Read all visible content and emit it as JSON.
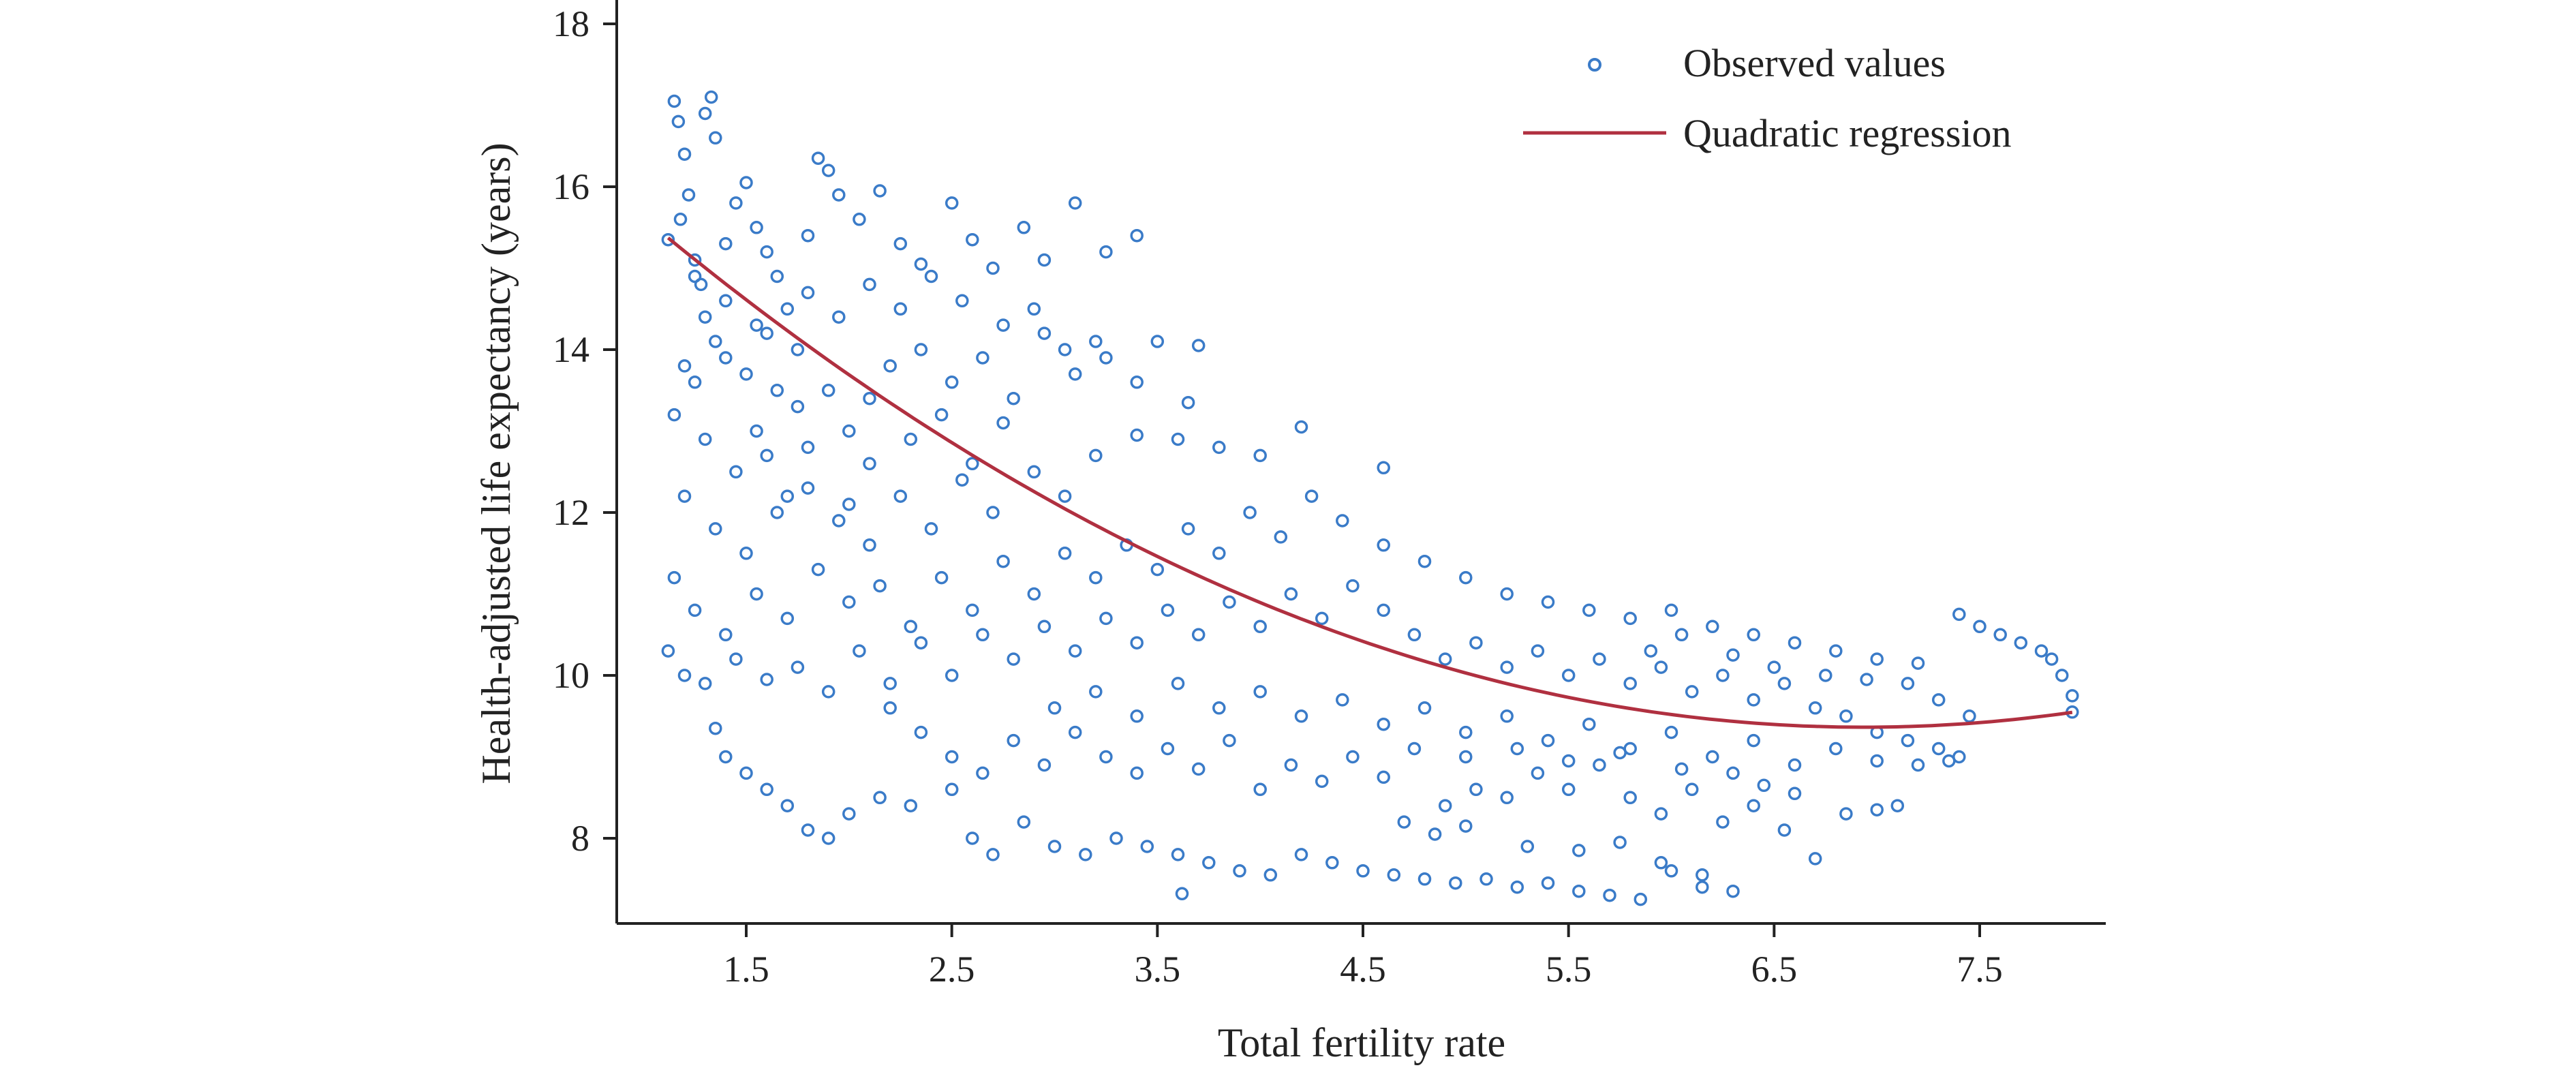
{
  "chart_data": {
    "type": "scatter",
    "xlabel": "Total fertility rate",
    "ylabel": "Health-adjusted life expectancy (years)",
    "xlim": [
      1.0,
      8.0
    ],
    "ylim": [
      7.0,
      18.0
    ],
    "xticks": [
      "1.5",
      "2.5",
      "3.5",
      "4.5",
      "5.5",
      "6.5",
      "7.5"
    ],
    "yticks": [
      "8",
      "10",
      "12",
      "14",
      "16",
      "18"
    ],
    "grid": false,
    "legend_position": "top-right",
    "series": [
      {
        "name": "Observed values",
        "kind": "scatter",
        "marker": "open-circle",
        "color": "#3a7bc8",
        "points": [
          [
            1.12,
            15.35
          ],
          [
            1.15,
            17.05
          ],
          [
            1.17,
            16.8
          ],
          [
            1.2,
            16.4
          ],
          [
            1.22,
            15.9
          ],
          [
            1.18,
            15.6
          ],
          [
            1.25,
            15.1
          ],
          [
            1.3,
            16.9
          ],
          [
            1.33,
            17.1
          ],
          [
            1.35,
            16.6
          ],
          [
            1.28,
            14.8
          ],
          [
            1.4,
            15.3
          ],
          [
            1.45,
            15.8
          ],
          [
            1.5,
            16.05
          ],
          [
            1.55,
            15.5
          ],
          [
            1.6,
            15.2
          ],
          [
            1.3,
            14.4
          ],
          [
            1.35,
            14.1
          ],
          [
            1.2,
            13.8
          ],
          [
            1.25,
            13.6
          ],
          [
            1.4,
            13.9
          ],
          [
            1.5,
            13.7
          ],
          [
            1.6,
            14.2
          ],
          [
            1.7,
            14.5
          ],
          [
            1.75,
            14.0
          ],
          [
            1.8,
            15.4
          ],
          [
            1.85,
            16.35
          ],
          [
            1.9,
            16.2
          ],
          [
            1.95,
            15.9
          ],
          [
            2.05,
            15.6
          ],
          [
            2.15,
            15.95
          ],
          [
            2.25,
            15.3
          ],
          [
            2.35,
            15.05
          ],
          [
            2.5,
            15.8
          ],
          [
            2.6,
            15.35
          ],
          [
            2.7,
            15.0
          ],
          [
            2.85,
            15.5
          ],
          [
            2.95,
            15.1
          ],
          [
            3.1,
            15.8
          ],
          [
            3.25,
            15.2
          ],
          [
            3.4,
            15.4
          ],
          [
            1.15,
            13.2
          ],
          [
            1.3,
            12.9
          ],
          [
            1.45,
            12.5
          ],
          [
            1.6,
            12.7
          ],
          [
            1.75,
            13.3
          ],
          [
            1.9,
            13.5
          ],
          [
            2.0,
            13.0
          ],
          [
            2.1,
            12.6
          ],
          [
            2.2,
            13.8
          ],
          [
            2.35,
            14.0
          ],
          [
            2.5,
            13.6
          ],
          [
            2.65,
            13.9
          ],
          [
            2.8,
            13.4
          ],
          [
            2.95,
            14.2
          ],
          [
            3.1,
            13.7
          ],
          [
            3.25,
            13.9
          ],
          [
            3.5,
            14.1
          ],
          [
            3.7,
            14.05
          ],
          [
            1.2,
            12.2
          ],
          [
            1.35,
            11.8
          ],
          [
            1.5,
            11.5
          ],
          [
            1.65,
            12.0
          ],
          [
            1.8,
            12.3
          ],
          [
            1.95,
            11.9
          ],
          [
            2.1,
            11.6
          ],
          [
            2.25,
            12.2
          ],
          [
            2.4,
            11.8
          ],
          [
            2.55,
            12.4
          ],
          [
            2.7,
            12.0
          ],
          [
            2.9,
            12.5
          ],
          [
            3.05,
            12.2
          ],
          [
            3.2,
            12.7
          ],
          [
            3.4,
            12.95
          ],
          [
            3.6,
            12.9
          ],
          [
            3.8,
            12.8
          ],
          [
            4.0,
            12.7
          ],
          [
            4.2,
            13.05
          ],
          [
            4.6,
            12.55
          ],
          [
            1.15,
            11.2
          ],
          [
            1.25,
            10.8
          ],
          [
            1.4,
            10.5
          ],
          [
            1.55,
            11.0
          ],
          [
            1.7,
            10.7
          ],
          [
            1.85,
            11.3
          ],
          [
            2.0,
            10.9
          ],
          [
            2.15,
            11.1
          ],
          [
            2.3,
            10.6
          ],
          [
            2.45,
            11.2
          ],
          [
            2.6,
            10.8
          ],
          [
            2.75,
            11.4
          ],
          [
            2.9,
            11.0
          ],
          [
            3.05,
            11.5
          ],
          [
            3.2,
            11.2
          ],
          [
            3.35,
            11.6
          ],
          [
            3.5,
            11.3
          ],
          [
            3.65,
            11.8
          ],
          [
            3.8,
            11.5
          ],
          [
            3.95,
            12.0
          ],
          [
            4.1,
            11.7
          ],
          [
            4.25,
            12.2
          ],
          [
            4.4,
            11.9
          ],
          [
            4.6,
            11.6
          ],
          [
            4.8,
            11.4
          ],
          [
            5.0,
            11.2
          ],
          [
            5.2,
            11.0
          ],
          [
            5.4,
            10.9
          ],
          [
            5.6,
            10.8
          ],
          [
            5.8,
            10.7
          ],
          [
            6.0,
            10.8
          ],
          [
            6.2,
            10.6
          ],
          [
            6.4,
            10.5
          ],
          [
            6.6,
            10.4
          ],
          [
            6.8,
            10.3
          ],
          [
            7.0,
            10.2
          ],
          [
            7.2,
            10.15
          ],
          [
            7.4,
            10.75
          ],
          [
            7.5,
            10.6
          ],
          [
            7.6,
            10.5
          ],
          [
            7.7,
            10.4
          ],
          [
            7.8,
            10.3
          ],
          [
            7.85,
            10.2
          ],
          [
            7.9,
            10.0
          ],
          [
            7.95,
            9.75
          ],
          [
            7.95,
            9.55
          ],
          [
            1.12,
            10.3
          ],
          [
            1.2,
            10.0
          ],
          [
            1.3,
            9.9
          ],
          [
            1.45,
            10.2
          ],
          [
            1.6,
            9.95
          ],
          [
            1.75,
            10.1
          ],
          [
            1.9,
            9.8
          ],
          [
            2.05,
            10.3
          ],
          [
            2.2,
            9.9
          ],
          [
            2.35,
            10.4
          ],
          [
            2.5,
            10.0
          ],
          [
            2.65,
            10.5
          ],
          [
            2.8,
            10.2
          ],
          [
            2.95,
            10.6
          ],
          [
            3.1,
            10.3
          ],
          [
            3.25,
            10.7
          ],
          [
            3.4,
            10.4
          ],
          [
            3.55,
            10.8
          ],
          [
            3.7,
            10.5
          ],
          [
            3.85,
            10.9
          ],
          [
            4.0,
            10.6
          ],
          [
            4.15,
            11.0
          ],
          [
            4.3,
            10.7
          ],
          [
            4.45,
            11.1
          ],
          [
            4.6,
            10.8
          ],
          [
            4.75,
            10.5
          ],
          [
            4.9,
            10.2
          ],
          [
            5.05,
            10.4
          ],
          [
            5.2,
            10.1
          ],
          [
            5.35,
            10.3
          ],
          [
            5.5,
            10.0
          ],
          [
            5.65,
            10.2
          ],
          [
            5.8,
            9.9
          ],
          [
            5.95,
            10.1
          ],
          [
            6.1,
            9.8
          ],
          [
            6.25,
            10.0
          ],
          [
            6.4,
            9.7
          ],
          [
            6.55,
            9.9
          ],
          [
            6.7,
            9.6
          ],
          [
            6.85,
            9.5
          ],
          [
            7.0,
            9.3
          ],
          [
            7.15,
            9.2
          ],
          [
            7.3,
            9.1
          ],
          [
            7.4,
            9.0
          ],
          [
            1.35,
            9.35
          ],
          [
            1.4,
            9.0
          ],
          [
            1.5,
            8.8
          ],
          [
            1.6,
            8.6
          ],
          [
            1.7,
            8.4
          ],
          [
            1.8,
            8.1
          ],
          [
            1.9,
            8.0
          ],
          [
            2.0,
            8.3
          ],
          [
            2.15,
            8.5
          ],
          [
            2.3,
            8.4
          ],
          [
            2.5,
            8.6
          ],
          [
            2.6,
            8.0
          ],
          [
            2.7,
            7.8
          ],
          [
            2.85,
            8.2
          ],
          [
            3.0,
            7.9
          ],
          [
            3.15,
            7.8
          ],
          [
            3.3,
            8.0
          ],
          [
            3.45,
            7.9
          ],
          [
            3.6,
            7.8
          ],
          [
            3.62,
            7.32
          ],
          [
            3.75,
            7.7
          ],
          [
            3.9,
            7.6
          ],
          [
            4.05,
            7.55
          ],
          [
            4.2,
            7.8
          ],
          [
            4.35,
            7.7
          ],
          [
            4.5,
            7.6
          ],
          [
            4.65,
            7.55
          ],
          [
            4.8,
            7.5
          ],
          [
            4.95,
            7.45
          ],
          [
            5.1,
            7.5
          ],
          [
            5.25,
            7.4
          ],
          [
            5.4,
            7.45
          ],
          [
            5.55,
            7.35
          ],
          [
            5.7,
            7.3
          ],
          [
            5.85,
            7.25
          ],
          [
            6.0,
            7.6
          ],
          [
            6.15,
            7.4
          ],
          [
            6.3,
            7.35
          ],
          [
            2.2,
            9.6
          ],
          [
            2.35,
            9.3
          ],
          [
            2.5,
            9.0
          ],
          [
            2.65,
            8.8
          ],
          [
            2.8,
            9.2
          ],
          [
            2.95,
            8.9
          ],
          [
            3.1,
            9.3
          ],
          [
            3.25,
            9.0
          ],
          [
            3.4,
            8.8
          ],
          [
            3.55,
            9.1
          ],
          [
            3.7,
            8.85
          ],
          [
            3.85,
            9.2
          ],
          [
            4.0,
            8.6
          ],
          [
            4.15,
            8.9
          ],
          [
            4.3,
            8.7
          ],
          [
            4.45,
            9.0
          ],
          [
            4.6,
            8.75
          ],
          [
            4.75,
            9.1
          ],
          [
            4.9,
            8.4
          ],
          [
            5.05,
            8.6
          ],
          [
            5.2,
            8.5
          ],
          [
            5.35,
            8.8
          ],
          [
            5.5,
            8.6
          ],
          [
            5.65,
            8.9
          ],
          [
            5.8,
            8.5
          ],
          [
            5.95,
            8.3
          ],
          [
            6.1,
            8.6
          ],
          [
            6.25,
            8.2
          ],
          [
            6.4,
            8.4
          ],
          [
            6.55,
            8.1
          ],
          [
            6.7,
            7.75
          ],
          [
            6.85,
            8.3
          ],
          [
            7.0,
            8.35
          ],
          [
            7.1,
            8.4
          ],
          [
            3.0,
            9.6
          ],
          [
            3.2,
            9.8
          ],
          [
            3.4,
            9.5
          ],
          [
            3.6,
            9.9
          ],
          [
            3.8,
            9.6
          ],
          [
            4.0,
            9.8
          ],
          [
            4.2,
            9.5
          ],
          [
            4.4,
            9.7
          ],
          [
            4.6,
            9.4
          ],
          [
            4.8,
            9.6
          ],
          [
            5.0,
            9.3
          ],
          [
            5.2,
            9.5
          ],
          [
            5.4,
            9.2
          ],
          [
            5.6,
            9.4
          ],
          [
            5.8,
            9.1
          ],
          [
            6.0,
            9.3
          ],
          [
            6.2,
            9.0
          ],
          [
            6.4,
            9.2
          ],
          [
            6.6,
            8.9
          ],
          [
            6.8,
            9.1
          ],
          [
            7.0,
            8.95
          ],
          [
            7.2,
            8.9
          ],
          [
            7.35,
            8.95
          ],
          [
            1.55,
            13.0
          ],
          [
            1.65,
            13.5
          ],
          [
            1.7,
            12.2
          ],
          [
            1.8,
            12.8
          ],
          [
            2.0,
            12.1
          ],
          [
            2.1,
            13.4
          ],
          [
            2.3,
            12.9
          ],
          [
            2.45,
            13.2
          ],
          [
            2.6,
            12.6
          ],
          [
            2.75,
            13.1
          ],
          [
            1.25,
            14.9
          ],
          [
            1.4,
            14.6
          ],
          [
            1.55,
            14.3
          ],
          [
            1.65,
            14.9
          ],
          [
            1.8,
            14.7
          ],
          [
            1.95,
            14.4
          ],
          [
            2.1,
            14.8
          ],
          [
            2.25,
            14.5
          ],
          [
            2.4,
            14.9
          ],
          [
            2.55,
            14.6
          ],
          [
            2.75,
            14.3
          ],
          [
            2.9,
            14.5
          ],
          [
            3.05,
            14.0
          ],
          [
            3.2,
            14.1
          ],
          [
            3.4,
            13.6
          ],
          [
            3.65,
            13.35
          ],
          [
            5.9,
            10.3
          ],
          [
            6.05,
            10.5
          ],
          [
            6.3,
            10.25
          ],
          [
            6.5,
            10.1
          ],
          [
            6.75,
            10.0
          ],
          [
            6.95,
            9.95
          ],
          [
            7.15,
            9.9
          ],
          [
            7.3,
            9.7
          ],
          [
            7.45,
            9.5
          ],
          [
            5.0,
            9.0
          ],
          [
            5.25,
            9.1
          ],
          [
            5.5,
            8.95
          ],
          [
            5.75,
            9.05
          ],
          [
            6.05,
            8.85
          ],
          [
            6.3,
            8.8
          ],
          [
            6.45,
            8.65
          ],
          [
            6.6,
            8.55
          ],
          [
            4.7,
            8.2
          ],
          [
            4.85,
            8.05
          ],
          [
            5.0,
            8.15
          ],
          [
            5.3,
            7.9
          ],
          [
            5.55,
            7.85
          ],
          [
            5.75,
            7.95
          ],
          [
            5.95,
            7.7
          ],
          [
            6.15,
            7.55
          ]
        ]
      },
      {
        "name": "Quadratic regression",
        "kind": "line",
        "color": "#b03040",
        "a": 0.1776,
        "b": -2.4637,
        "c": 17.908,
        "x_range": [
          1.12,
          7.95
        ]
      }
    ]
  }
}
